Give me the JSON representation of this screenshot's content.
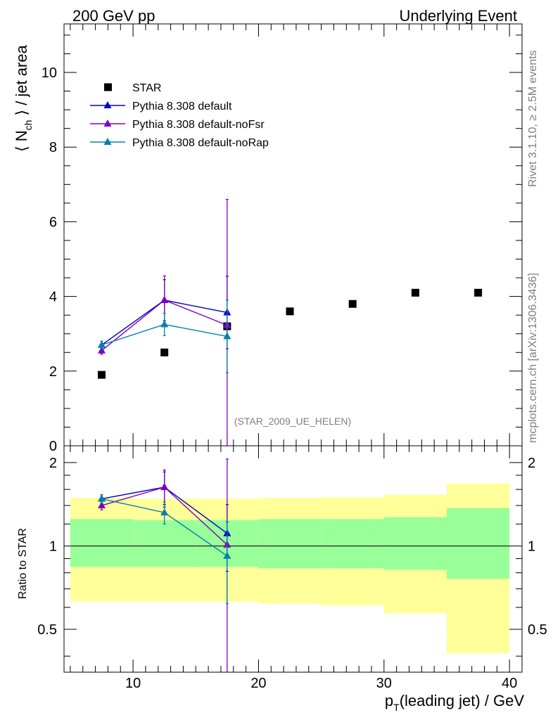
{
  "header": {
    "left": "200 GeV pp",
    "right": "Underlying Event"
  },
  "side": {
    "rivet": "Rivet 3.1.10, ≥ 2.5M events",
    "mcplots": "mcplots.cern.ch [arXiv:1306.3436]"
  },
  "analysis_tag": "(STAR_2009_UE_HELEN)",
  "chart_data": [
    {
      "type": "scatter",
      "panel": "main",
      "ylabel": "⟨ N_ch ⟩ / jet area",
      "xlim": [
        4.5,
        41
      ],
      "ylim": [
        0,
        11.3
      ],
      "yticks": [
        0,
        2,
        4,
        6,
        8,
        10
      ],
      "legend_position": "top-left",
      "series": [
        {
          "name": "STAR",
          "color": "#000000",
          "marker": "square",
          "x": [
            7.5,
            12.5,
            17.5,
            22.5,
            27.5,
            32.5,
            37.5
          ],
          "y": [
            1.9,
            2.5,
            3.2,
            3.6,
            3.8,
            4.1,
            4.1
          ]
        },
        {
          "name": "Pythia 8.308 default",
          "color": "#0000cc",
          "marker": "triangle",
          "x": [
            7.5,
            12.5,
            17.5
          ],
          "y": [
            2.7,
            3.9,
            3.57
          ],
          "err": [
            0.1,
            0.55,
            0.97
          ]
        },
        {
          "name": "Pythia 8.308 default-noFsr",
          "color": "#8000c0",
          "marker": "triangle",
          "x": [
            7.5,
            12.5,
            17.5
          ],
          "y": [
            2.55,
            3.9,
            3.23
          ],
          "err": [
            0.1,
            0.65,
            3.37
          ]
        },
        {
          "name": "Pythia 8.308 default-noRap",
          "color": "#0080b0",
          "marker": "triangle",
          "x": [
            7.5,
            12.5,
            17.5
          ],
          "y": [
            2.7,
            3.25,
            2.93
          ],
          "err": [
            0.1,
            0.3,
            0.97
          ]
        }
      ]
    },
    {
      "type": "scatter",
      "panel": "ratio",
      "ylabel": "Ratio to STAR",
      "xlabel": "p_T(leading jet) / GeV",
      "xlim": [
        4.5,
        41
      ],
      "xticks": [
        10,
        20,
        30,
        40
      ],
      "ylim": [
        0.35,
        2.3
      ],
      "scale": "log",
      "yticks": [
        0.5,
        1,
        2
      ],
      "bands": [
        {
          "xlo": 5,
          "xhi": 10,
          "yellow": [
            0.63,
            1.49
          ],
          "green": [
            0.84,
            1.25
          ]
        },
        {
          "xlo": 10,
          "xhi": 15,
          "yellow": [
            0.63,
            1.48
          ],
          "green": [
            0.84,
            1.24
          ]
        },
        {
          "xlo": 15,
          "xhi": 20,
          "yellow": [
            0.63,
            1.48
          ],
          "green": [
            0.84,
            1.24
          ]
        },
        {
          "xlo": 20,
          "xhi": 25,
          "yellow": [
            0.62,
            1.49
          ],
          "green": [
            0.83,
            1.25
          ]
        },
        {
          "xlo": 25,
          "xhi": 30,
          "yellow": [
            0.61,
            1.5
          ],
          "green": [
            0.83,
            1.25
          ]
        },
        {
          "xlo": 30,
          "xhi": 35,
          "yellow": [
            0.57,
            1.53
          ],
          "green": [
            0.82,
            1.27
          ]
        },
        {
          "xlo": 35,
          "xhi": 40,
          "yellow": [
            0.41,
            1.68
          ],
          "green": [
            0.76,
            1.37
          ]
        }
      ],
      "series": [
        {
          "name": "Pythia 8.308 default",
          "color": "#0000cc",
          "x": [
            7.5,
            12.5,
            17.5
          ],
          "y": [
            1.48,
            1.63,
            1.11
          ],
          "err": [
            0.05,
            0.22,
            0.3
          ]
        },
        {
          "name": "Pythia 8.308 default-noFsr",
          "color": "#8000c0",
          "x": [
            7.5,
            12.5,
            17.5
          ],
          "y": [
            1.4,
            1.63,
            1.01
          ],
          "err": [
            0.05,
            0.25,
            1.05
          ]
        },
        {
          "name": "Pythia 8.308 default-noRap",
          "color": "#0080b0",
          "x": [
            7.5,
            12.5,
            17.5
          ],
          "y": [
            1.48,
            1.32,
            0.92
          ],
          "err": [
            0.05,
            0.12,
            0.3
          ]
        }
      ]
    }
  ]
}
